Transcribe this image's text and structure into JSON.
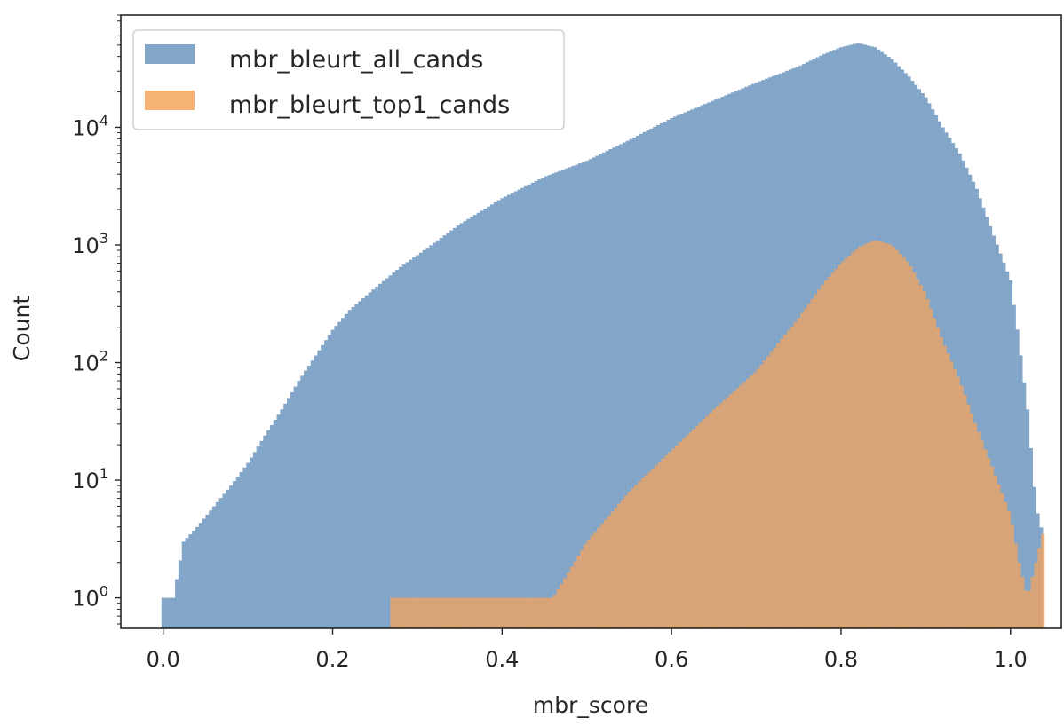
{
  "chart_data": {
    "type": "histogram",
    "xlabel": "mbr_score",
    "ylabel": "Count",
    "xlim": [
      -0.05,
      1.06
    ],
    "ylim": [
      0.55,
      90000
    ],
    "yscale": "log",
    "x_ticks": [
      0.0,
      0.2,
      0.4,
      0.6,
      0.8,
      1.0
    ],
    "x_tick_labels": [
      "0.0",
      "0.2",
      "0.4",
      "0.6",
      "0.8",
      "1.0"
    ],
    "y_ticks": [
      1,
      10,
      100,
      1000,
      10000
    ],
    "y_tick_bases": [
      "10",
      "10",
      "10",
      "10",
      "10"
    ],
    "y_tick_exponents": [
      "0",
      "1",
      "2",
      "3",
      "4"
    ],
    "grid": false,
    "legend_position": "top-left",
    "series": [
      {
        "name": "mbr_bleurt_all_cands",
        "color": "#7aa0c4",
        "bin_width": 0.004,
        "points": [
          [
            0.0,
            1
          ],
          [
            0.012,
            1
          ],
          [
            0.024,
            3
          ],
          [
            0.04,
            4
          ],
          [
            0.06,
            6
          ],
          [
            0.08,
            9
          ],
          [
            0.1,
            14
          ],
          [
            0.12,
            24
          ],
          [
            0.14,
            40
          ],
          [
            0.16,
            70
          ],
          [
            0.18,
            115
          ],
          [
            0.2,
            190
          ],
          [
            0.22,
            280
          ],
          [
            0.25,
            430
          ],
          [
            0.28,
            650
          ],
          [
            0.3,
            820
          ],
          [
            0.35,
            1500
          ],
          [
            0.4,
            2500
          ],
          [
            0.45,
            3800
          ],
          [
            0.5,
            5200
          ],
          [
            0.55,
            7800
          ],
          [
            0.6,
            12000
          ],
          [
            0.65,
            17000
          ],
          [
            0.7,
            24000
          ],
          [
            0.75,
            33000
          ],
          [
            0.78,
            42000
          ],
          [
            0.8,
            48000
          ],
          [
            0.82,
            52000
          ],
          [
            0.84,
            48000
          ],
          [
            0.86,
            38000
          ],
          [
            0.88,
            27000
          ],
          [
            0.9,
            18000
          ],
          [
            0.92,
            10000
          ],
          [
            0.94,
            6000
          ],
          [
            0.96,
            3000
          ],
          [
            0.98,
            1200
          ],
          [
            1.0,
            500
          ],
          [
            1.01,
            150
          ],
          [
            1.02,
            40
          ],
          [
            1.03,
            6
          ],
          [
            1.04,
            3
          ]
        ]
      },
      {
        "name": "mbr_bleurt_top1_cands",
        "color": "#f5a45c",
        "bin_width": 0.004,
        "points": [
          [
            0.27,
            1
          ],
          [
            0.33,
            1
          ],
          [
            0.37,
            1
          ],
          [
            0.42,
            1
          ],
          [
            0.46,
            1
          ],
          [
            0.5,
            3
          ],
          [
            0.55,
            8
          ],
          [
            0.6,
            18
          ],
          [
            0.65,
            40
          ],
          [
            0.7,
            85
          ],
          [
            0.75,
            240
          ],
          [
            0.78,
            480
          ],
          [
            0.8,
            700
          ],
          [
            0.82,
            950
          ],
          [
            0.84,
            1100
          ],
          [
            0.86,
            1000
          ],
          [
            0.88,
            700
          ],
          [
            0.9,
            380
          ],
          [
            0.92,
            150
          ],
          [
            0.94,
            70
          ],
          [
            0.96,
            28
          ],
          [
            0.98,
            12
          ],
          [
            1.0,
            5
          ],
          [
            1.01,
            2
          ],
          [
            1.02,
            1
          ],
          [
            1.03,
            2
          ],
          [
            1.04,
            4
          ]
        ]
      }
    ]
  }
}
